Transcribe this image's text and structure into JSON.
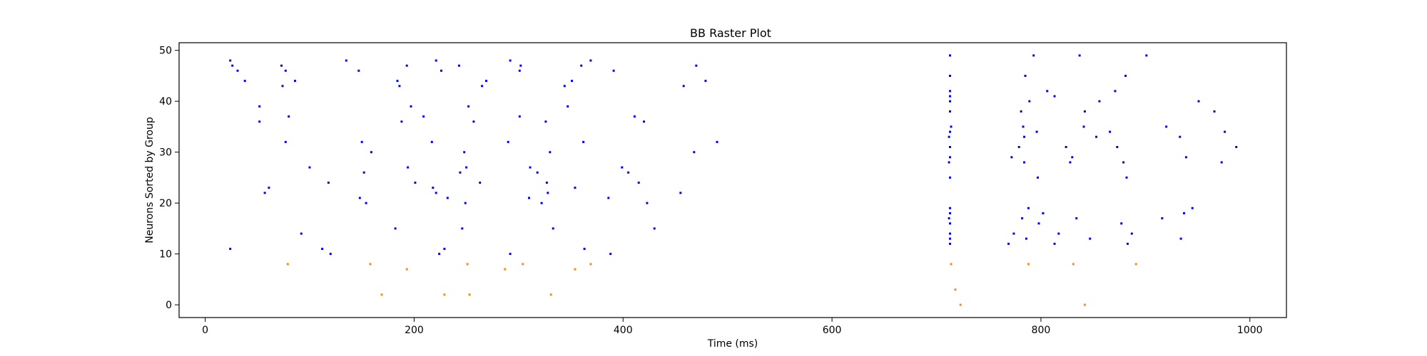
{
  "chart_data": {
    "type": "scatter",
    "title": "BB Raster Plot",
    "xlabel": "Time (ms)",
    "ylabel": "Neurons Sorted by Group",
    "xlim": [
      -25,
      1035
    ],
    "ylim": [
      -2.5,
      51.5
    ],
    "xticks": [
      0,
      200,
      400,
      600,
      800,
      1000
    ],
    "yticks": [
      0,
      10,
      20,
      30,
      40,
      50
    ],
    "grid": false,
    "series": [
      {
        "color": "#0000ff",
        "points": [
          [
            24,
            48
          ],
          [
            26,
            47
          ],
          [
            31,
            46
          ],
          [
            38,
            44
          ],
          [
            52,
            39
          ],
          [
            52,
            36
          ],
          [
            57,
            22
          ],
          [
            61,
            23
          ],
          [
            73,
            47
          ],
          [
            74,
            43
          ],
          [
            77,
            46
          ],
          [
            77,
            32
          ],
          [
            80,
            37
          ],
          [
            86,
            44
          ],
          [
            92,
            14
          ],
          [
            100,
            27
          ],
          [
            112,
            11
          ],
          [
            118,
            24
          ],
          [
            120,
            10
          ],
          [
            24,
            11
          ],
          [
            135,
            48
          ],
          [
            147,
            46
          ],
          [
            148,
            21
          ],
          [
            150,
            32
          ],
          [
            152,
            26
          ],
          [
            154,
            20
          ],
          [
            159,
            30
          ],
          [
            182,
            15
          ],
          [
            184,
            44
          ],
          [
            186,
            43
          ],
          [
            188,
            36
          ],
          [
            193,
            47
          ],
          [
            194,
            27
          ],
          [
            197,
            39
          ],
          [
            201,
            24
          ],
          [
            209,
            37
          ],
          [
            217,
            32
          ],
          [
            218,
            23
          ],
          [
            221,
            22
          ],
          [
            221,
            48
          ],
          [
            224,
            10
          ],
          [
            226,
            46
          ],
          [
            229,
            11
          ],
          [
            232,
            21
          ],
          [
            243,
            47
          ],
          [
            244,
            26
          ],
          [
            246,
            15
          ],
          [
            248,
            30
          ],
          [
            249,
            20
          ],
          [
            250,
            27
          ],
          [
            252,
            39
          ],
          [
            257,
            36
          ],
          [
            263,
            24
          ],
          [
            265,
            43
          ],
          [
            269,
            44
          ],
          [
            290,
            32
          ],
          [
            292,
            10
          ],
          [
            292,
            48
          ],
          [
            301,
            37
          ],
          [
            301,
            46
          ],
          [
            302,
            47
          ],
          [
            310,
            21
          ],
          [
            311,
            27
          ],
          [
            318,
            26
          ],
          [
            322,
            20
          ],
          [
            326,
            36
          ],
          [
            327,
            24
          ],
          [
            328,
            22
          ],
          [
            330,
            30
          ],
          [
            333,
            15
          ],
          [
            344,
            43
          ],
          [
            347,
            39
          ],
          [
            351,
            44
          ],
          [
            354,
            23
          ],
          [
            360,
            47
          ],
          [
            362,
            32
          ],
          [
            363,
            11
          ],
          [
            369,
            48
          ],
          [
            386,
            21
          ],
          [
            388,
            10
          ],
          [
            391,
            46
          ],
          [
            399,
            27
          ],
          [
            405,
            26
          ],
          [
            411,
            37
          ],
          [
            415,
            24
          ],
          [
            420,
            36
          ],
          [
            423,
            20
          ],
          [
            430,
            15
          ],
          [
            455,
            22
          ],
          [
            458,
            43
          ],
          [
            468,
            30
          ],
          [
            470,
            47
          ],
          [
            479,
            44
          ],
          [
            490,
            32
          ],
          [
            713,
            49
          ],
          [
            713,
            45
          ],
          [
            713,
            42
          ],
          [
            713,
            41
          ],
          [
            713,
            40
          ],
          [
            713,
            38
          ],
          [
            714,
            35
          ],
          [
            713,
            34
          ],
          [
            712,
            33
          ],
          [
            713,
            31
          ],
          [
            713,
            29
          ],
          [
            712,
            28
          ],
          [
            713,
            25
          ],
          [
            713,
            19
          ],
          [
            713,
            18
          ],
          [
            712,
            17
          ],
          [
            713,
            16
          ],
          [
            713,
            14
          ],
          [
            713,
            13
          ],
          [
            713,
            12
          ],
          [
            769,
            12
          ],
          [
            772,
            29
          ],
          [
            774,
            14
          ],
          [
            779,
            31
          ],
          [
            781,
            38
          ],
          [
            782,
            17
          ],
          [
            783,
            35
          ],
          [
            784,
            33
          ],
          [
            784,
            28
          ],
          [
            785,
            45
          ],
          [
            786,
            13
          ],
          [
            788,
            19
          ],
          [
            789,
            40
          ],
          [
            793,
            49
          ],
          [
            796,
            34
          ],
          [
            797,
            25
          ],
          [
            798,
            16
          ],
          [
            802,
            18
          ],
          [
            806,
            42
          ],
          [
            813,
            12
          ],
          [
            813,
            41
          ],
          [
            817,
            14
          ],
          [
            824,
            31
          ],
          [
            828,
            28
          ],
          [
            830,
            29
          ],
          [
            834,
            17
          ],
          [
            837,
            49
          ],
          [
            841,
            35
          ],
          [
            842,
            38
          ],
          [
            847,
            13
          ],
          [
            853,
            33
          ],
          [
            856,
            40
          ],
          [
            866,
            34
          ],
          [
            871,
            42
          ],
          [
            873,
            31
          ],
          [
            877,
            16
          ],
          [
            879,
            28
          ],
          [
            881,
            45
          ],
          [
            882,
            25
          ],
          [
            883,
            12
          ],
          [
            887,
            14
          ],
          [
            901,
            49
          ],
          [
            916,
            17
          ],
          [
            920,
            35
          ],
          [
            933,
            33
          ],
          [
            934,
            13
          ],
          [
            937,
            18
          ],
          [
            939,
            29
          ],
          [
            945,
            19
          ],
          [
            951,
            40
          ],
          [
            966,
            38
          ],
          [
            973,
            28
          ],
          [
            976,
            34
          ],
          [
            987,
            31
          ]
        ]
      },
      {
        "color": "#ff8c00",
        "points": [
          [
            79,
            8
          ],
          [
            158,
            8
          ],
          [
            169,
            2
          ],
          [
            193,
            7
          ],
          [
            229,
            2
          ],
          [
            251,
            8
          ],
          [
            253,
            2
          ],
          [
            287,
            7
          ],
          [
            304,
            8
          ],
          [
            331,
            2
          ],
          [
            354,
            7
          ],
          [
            369,
            8
          ],
          [
            714,
            8
          ],
          [
            718,
            3
          ],
          [
            723,
            0
          ],
          [
            788,
            8
          ],
          [
            831,
            8
          ],
          [
            842,
            0
          ],
          [
            891,
            8
          ]
        ]
      }
    ]
  }
}
